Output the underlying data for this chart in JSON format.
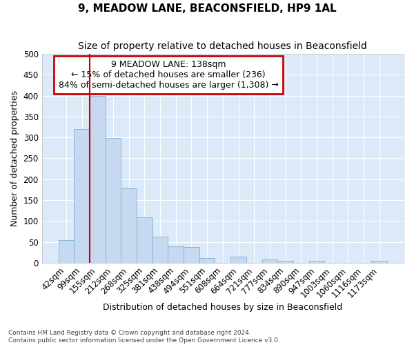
{
  "title": "9, MEADOW LANE, BEACONSFIELD, HP9 1AL",
  "subtitle": "Size of property relative to detached houses in Beaconsfield",
  "xlabel": "Distribution of detached houses by size in Beaconsfield",
  "ylabel": "Number of detached properties",
  "footnote1": "Contains HM Land Registry data © Crown copyright and database right 2024.",
  "footnote2": "Contains public sector information licensed under the Open Government Licence v3.0.",
  "bar_labels": [
    "42sqm",
    "99sqm",
    "155sqm",
    "212sqm",
    "268sqm",
    "325sqm",
    "381sqm",
    "438sqm",
    "494sqm",
    "551sqm",
    "608sqm",
    "664sqm",
    "721sqm",
    "777sqm",
    "834sqm",
    "890sqm",
    "947sqm",
    "1003sqm",
    "1060sqm",
    "1116sqm",
    "1173sqm"
  ],
  "bar_values": [
    55,
    320,
    400,
    298,
    178,
    108,
    63,
    40,
    37,
    12,
    0,
    15,
    0,
    8,
    5,
    0,
    5,
    0,
    0,
    0,
    5
  ],
  "bar_color": "#c6d9f1",
  "bar_edge_color": "#7bafd4",
  "red_line_index": 2,
  "annotation_text": "9 MEADOW LANE: 138sqm\n← 15% of detached houses are smaller (236)\n84% of semi-detached houses are larger (1,308) →",
  "annotation_box_color": "#ffffff",
  "annotation_box_edge_color": "#cc0000",
  "red_line_color": "#cc0000",
  "ylim": [
    0,
    500
  ],
  "yticks": [
    0,
    50,
    100,
    150,
    200,
    250,
    300,
    350,
    400,
    450,
    500
  ],
  "background_color": "#ffffff",
  "plot_bg_color": "#dce9f8",
  "title_fontsize": 11,
  "subtitle_fontsize": 10,
  "axis_label_fontsize": 9,
  "tick_fontsize": 8.5,
  "annot_fontsize": 9
}
